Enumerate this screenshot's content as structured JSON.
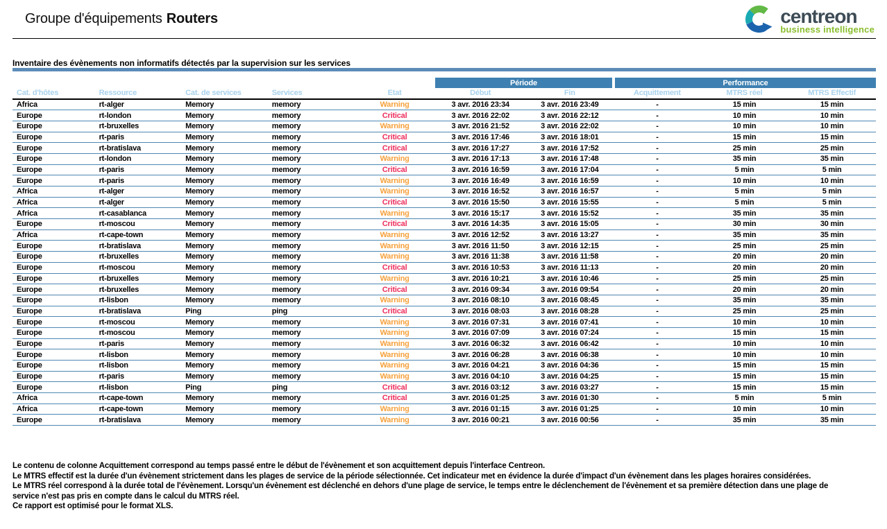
{
  "header": {
    "title_prefix": "Groupe d'équipements",
    "title_group": "Routers",
    "logo_name": "centreon",
    "logo_tagline": "business intelligence"
  },
  "report": {
    "section_title": "Inventaire des évènements non informatifs détectés par la supervision sur les services"
  },
  "table": {
    "group_headers": [
      {
        "label": "Période",
        "span": 2
      },
      {
        "label": "Performance",
        "span": 3
      }
    ],
    "columns": [
      "Cat. d'hôtes",
      "Ressource",
      "Cat. de services",
      "Services",
      "Etat",
      "Début",
      "Fin",
      "Acquittement",
      "MTRS réel",
      "MTRS Effectif"
    ],
    "column_keys": [
      "host-category",
      "resource",
      "service-category",
      "service",
      "state",
      "start",
      "end",
      "acknowledgement",
      "mtrs-real",
      "mtrs-effective"
    ],
    "rows": [
      [
        "Africa",
        "rt-alger",
        "Memory",
        "memory",
        "Warning",
        "3 avr. 2016 23:34",
        "3 avr. 2016 23:49",
        "-",
        "15 min",
        "15 min"
      ],
      [
        "Europe",
        "rt-london",
        "Memory",
        "memory",
        "Critical",
        "3 avr. 2016 22:02",
        "3 avr. 2016 22:12",
        "-",
        "10 min",
        "10 min"
      ],
      [
        "Europe",
        "rt-bruxelles",
        "Memory",
        "memory",
        "Warning",
        "3 avr. 2016 21:52",
        "3 avr. 2016 22:02",
        "-",
        "10 min",
        "10 min"
      ],
      [
        "Europe",
        "rt-paris",
        "Memory",
        "memory",
        "Critical",
        "3 avr. 2016 17:46",
        "3 avr. 2016 18:01",
        "-",
        "15 min",
        "15 min"
      ],
      [
        "Europe",
        "rt-bratislava",
        "Memory",
        "memory",
        "Critical",
        "3 avr. 2016 17:27",
        "3 avr. 2016 17:52",
        "-",
        "25 min",
        "25 min"
      ],
      [
        "Europe",
        "rt-london",
        "Memory",
        "memory",
        "Warning",
        "3 avr. 2016 17:13",
        "3 avr. 2016 17:48",
        "-",
        "35 min",
        "35 min"
      ],
      [
        "Europe",
        "rt-paris",
        "Memory",
        "memory",
        "Critical",
        "3 avr. 2016 16:59",
        "3 avr. 2016 17:04",
        "-",
        "5 min",
        "5 min"
      ],
      [
        "Europe",
        "rt-paris",
        "Memory",
        "memory",
        "Warning",
        "3 avr. 2016 16:49",
        "3 avr. 2016 16:59",
        "-",
        "10 min",
        "10 min"
      ],
      [
        "Africa",
        "rt-alger",
        "Memory",
        "memory",
        "Warning",
        "3 avr. 2016 16:52",
        "3 avr. 2016 16:57",
        "-",
        "5 min",
        "5 min"
      ],
      [
        "Africa",
        "rt-alger",
        "Memory",
        "memory",
        "Critical",
        "3 avr. 2016 15:50",
        "3 avr. 2016 15:55",
        "-",
        "5 min",
        "5 min"
      ],
      [
        "Africa",
        "rt-casablanca",
        "Memory",
        "memory",
        "Warning",
        "3 avr. 2016 15:17",
        "3 avr. 2016 15:52",
        "-",
        "35 min",
        "35 min"
      ],
      [
        "Europe",
        "rt-moscou",
        "Memory",
        "memory",
        "Critical",
        "3 avr. 2016 14:35",
        "3 avr. 2016 15:05",
        "-",
        "30 min",
        "30 min"
      ],
      [
        "Africa",
        "rt-cape-town",
        "Memory",
        "memory",
        "Warning",
        "3 avr. 2016 12:52",
        "3 avr. 2016 13:27",
        "-",
        "35 min",
        "35 min"
      ],
      [
        "Europe",
        "rt-bratislava",
        "Memory",
        "memory",
        "Warning",
        "3 avr. 2016 11:50",
        "3 avr. 2016 12:15",
        "-",
        "25 min",
        "25 min"
      ],
      [
        "Europe",
        "rt-bruxelles",
        "Memory",
        "memory",
        "Warning",
        "3 avr. 2016 11:38",
        "3 avr. 2016 11:58",
        "-",
        "20 min",
        "20 min"
      ],
      [
        "Europe",
        "rt-moscou",
        "Memory",
        "memory",
        "Critical",
        "3 avr. 2016 10:53",
        "3 avr. 2016 11:13",
        "-",
        "20 min",
        "20 min"
      ],
      [
        "Europe",
        "rt-bruxelles",
        "Memory",
        "memory",
        "Warning",
        "3 avr. 2016 10:21",
        "3 avr. 2016 10:46",
        "-",
        "25 min",
        "25 min"
      ],
      [
        "Europe",
        "rt-bruxelles",
        "Memory",
        "memory",
        "Critical",
        "3 avr. 2016 09:34",
        "3 avr. 2016 09:54",
        "-",
        "20 min",
        "20 min"
      ],
      [
        "Europe",
        "rt-lisbon",
        "Memory",
        "memory",
        "Warning",
        "3 avr. 2016 08:10",
        "3 avr. 2016 08:45",
        "-",
        "35 min",
        "35 min"
      ],
      [
        "Europe",
        "rt-bratislava",
        "Ping",
        "ping",
        "Critical",
        "3 avr. 2016 08:03",
        "3 avr. 2016 08:28",
        "-",
        "25 min",
        "25 min"
      ],
      [
        "Europe",
        "rt-moscou",
        "Memory",
        "memory",
        "Warning",
        "3 avr. 2016 07:31",
        "3 avr. 2016 07:41",
        "-",
        "10 min",
        "10 min"
      ],
      [
        "Europe",
        "rt-moscou",
        "Memory",
        "memory",
        "Warning",
        "3 avr. 2016 07:09",
        "3 avr. 2016 07:24",
        "-",
        "15 min",
        "15 min"
      ],
      [
        "Europe",
        "rt-paris",
        "Memory",
        "memory",
        "Warning",
        "3 avr. 2016 06:32",
        "3 avr. 2016 06:42",
        "-",
        "10 min",
        "10 min"
      ],
      [
        "Europe",
        "rt-lisbon",
        "Memory",
        "memory",
        "Warning",
        "3 avr. 2016 06:28",
        "3 avr. 2016 06:38",
        "-",
        "10 min",
        "10 min"
      ],
      [
        "Europe",
        "rt-lisbon",
        "Memory",
        "memory",
        "Warning",
        "3 avr. 2016 04:21",
        "3 avr. 2016 04:36",
        "-",
        "15 min",
        "15 min"
      ],
      [
        "Europe",
        "rt-paris",
        "Memory",
        "memory",
        "Warning",
        "3 avr. 2016 04:10",
        "3 avr. 2016 04:25",
        "-",
        "15 min",
        "15 min"
      ],
      [
        "Europe",
        "rt-lisbon",
        "Ping",
        "ping",
        "Critical",
        "3 avr. 2016 03:12",
        "3 avr. 2016 03:27",
        "-",
        "15 min",
        "15 min"
      ],
      [
        "Africa",
        "rt-cape-town",
        "Memory",
        "memory",
        "Critical",
        "3 avr. 2016 01:25",
        "3 avr. 2016 01:30",
        "-",
        "5 min",
        "5 min"
      ],
      [
        "Africa",
        "rt-cape-town",
        "Memory",
        "memory",
        "Warning",
        "3 avr. 2016 01:15",
        "3 avr. 2016 01:25",
        "-",
        "10 min",
        "10 min"
      ],
      [
        "Europe",
        "rt-bratislava",
        "Memory",
        "memory",
        "Warning",
        "3 avr. 2016 00:21",
        "3 avr. 2016 00:56",
        "-",
        "35 min",
        "35 min"
      ]
    ]
  },
  "footer": {
    "notes": [
      "Le contenu de colonne Acquittement correspond au temps passé entre le début de l'évènement et son acquittement depuis l'interface Centreon.",
      "Le MTRS effectif est la durée d'un évènement strictement dans les plages de service de la période sélectionnée. Cet indicateur met en évidence la durée d'impact d'un évènement dans les plages horaires considérées.",
      "Le MTRS réel correspond à la durée total de l'évènement. Lorsqu'un évènement est déclenché en dehors d'une plage de service, le temps entre le déclenchement de l'évènement et sa première détection dans une plage de",
      "service n'est pas pris en compte dans le calcul du MTRS réel.",
      "Ce rapport est optimisé pour le format XLS."
    ]
  },
  "colors": {
    "header_bar_blue": "#3e80b1",
    "row_line_blue": "#4e87b2",
    "section_underline_blue": "#5b8cb8",
    "column_header_text": "#a9d2ec",
    "warning": "#f6a13c",
    "critical": "#ed2e5c",
    "logo_dark": "#3d4b55",
    "logo_green": "#8abe2e"
  }
}
